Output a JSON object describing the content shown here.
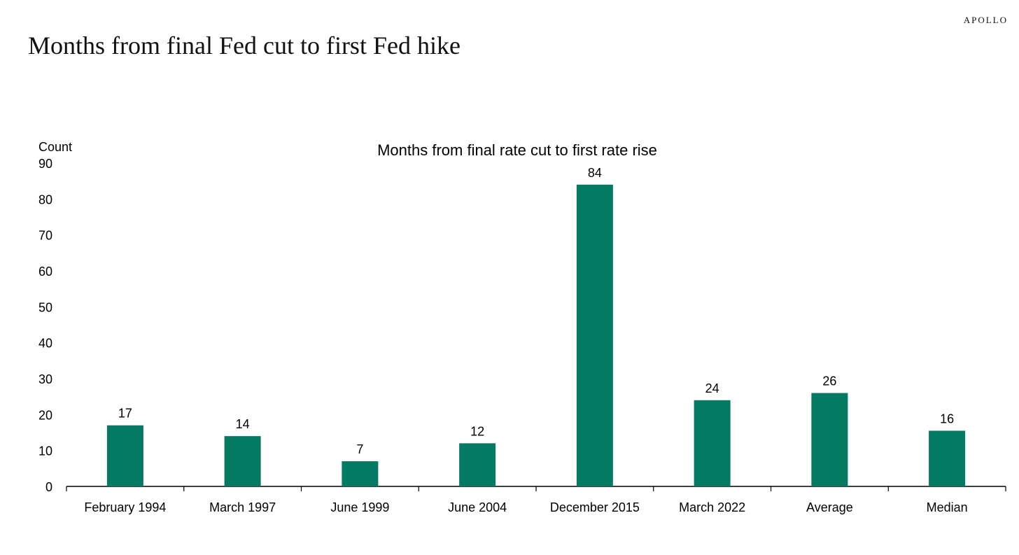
{
  "brand": "APOLLO",
  "page_title": "Months from final Fed cut to first Fed hike",
  "colors": {
    "bar": "#047A62",
    "axis": "#000000",
    "text": "#000000"
  },
  "chart_data": {
    "type": "bar",
    "title": "Months from final rate cut to first rate rise",
    "ylabel": "Count",
    "xlabel": "",
    "ylim": [
      0,
      90
    ],
    "yticks": [
      0,
      10,
      20,
      30,
      40,
      50,
      60,
      70,
      80,
      90
    ],
    "grid": false,
    "legend": "none",
    "categories": [
      "February 1994",
      "March 1997",
      "June 1999",
      "June 2004",
      "December 2015",
      "March 2022",
      "Average",
      "Median"
    ],
    "values": [
      17,
      14,
      7,
      12,
      84,
      24,
      26,
      15.5
    ],
    "data_labels": [
      "17",
      "14",
      "7",
      "12",
      "84",
      "24",
      "26",
      "16"
    ]
  }
}
